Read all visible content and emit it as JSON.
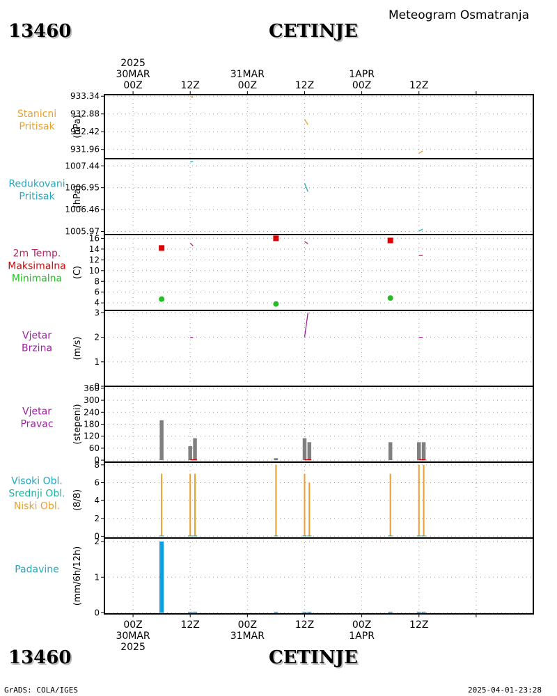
{
  "header": {
    "station_id": "13460",
    "station_name": "CETINJE",
    "subtitle": "Meteogram Osmatranja"
  },
  "footer": {
    "station_id": "13460",
    "station_name": "CETINJE",
    "credit": "GrADS: COLA/IGES",
    "timestamp": "2025-04-01-23:28"
  },
  "chart_data": {
    "type": "meteogram",
    "time_axis": {
      "hours_range": [
        -6,
        84
      ],
      "top_labels": [
        {
          "hour": 0,
          "lines": [
            "2025",
            "30MAR",
            "00Z"
          ]
        },
        {
          "hour": 12,
          "lines": [
            "12Z"
          ]
        },
        {
          "hour": 24,
          "lines": [
            "31MAR",
            "00Z"
          ]
        },
        {
          "hour": 36,
          "lines": [
            "12Z"
          ]
        },
        {
          "hour": 48,
          "lines": [
            "1APR",
            "00Z"
          ]
        },
        {
          "hour": 60,
          "lines": [
            "12Z"
          ]
        }
      ],
      "bottom_labels": [
        {
          "hour": 0,
          "lines": [
            "00Z",
            "30MAR",
            "2025"
          ]
        },
        {
          "hour": 12,
          "lines": [
            "12Z"
          ]
        },
        {
          "hour": 24,
          "lines": [
            "00Z",
            "31MAR"
          ]
        },
        {
          "hour": 36,
          "lines": [
            "12Z"
          ]
        },
        {
          "hour": 48,
          "lines": [
            "00Z",
            "1APR"
          ]
        },
        {
          "hour": 60,
          "lines": [
            "12Z"
          ]
        }
      ],
      "vgrid_hours": [
        0,
        12,
        24,
        36,
        48,
        60,
        72
      ]
    },
    "panels": [
      {
        "id": "station-pressure",
        "labels": [
          {
            "text": "Stanicni",
            "color": "#e8a030"
          },
          {
            "text": "Pritisak",
            "color": "#e8a030"
          }
        ],
        "unit": "(hPa)",
        "ylim": [
          931.72,
          933.38
        ],
        "ticks": [
          {
            "v": 933.34,
            "t": "933.34"
          },
          {
            "v": 932.88,
            "t": "932.88"
          },
          {
            "v": 932.42,
            "t": "932.42"
          },
          {
            "v": 931.96,
            "t": "931.96"
          }
        ],
        "series": [
          {
            "type": "segments",
            "color": "#e8a030",
            "segments": [
              [
                [
                  12,
                  933.34
                ],
                [
                  12.6,
                  933.3
                ]
              ],
              [
                [
                  36,
                  932.74
                ],
                [
                  36.7,
                  932.6
                ]
              ],
              [
                [
                  60,
                  931.86
                ],
                [
                  60.8,
                  931.92
                ]
              ]
            ]
          }
        ]
      },
      {
        "id": "reduced-pressure",
        "labels": [
          {
            "text": "Redukovani",
            "color": "#20a8c0"
          },
          {
            "text": "Pritisak",
            "color": "#20a8c0"
          }
        ],
        "unit": "(hPa)",
        "ylim": [
          1005.9,
          1007.6
        ],
        "ticks": [
          {
            "v": 1007.44,
            "t": "1007.44"
          },
          {
            "v": 1006.95,
            "t": "1006.95"
          },
          {
            "v": 1006.46,
            "t": "1006.46"
          },
          {
            "v": 1005.97,
            "t": "1005.97"
          }
        ],
        "series": [
          {
            "type": "segments",
            "color": "#20a8c0",
            "segments": [
              [
                [
                  12,
                  1007.53
                ],
                [
                  12.6,
                  1007.53
                ]
              ],
              [
                [
                  36,
                  1007.05
                ],
                [
                  36.7,
                  1006.86
                ]
              ],
              [
                [
                  60,
                  1005.98
                ],
                [
                  60.8,
                  1006.02
                ]
              ]
            ]
          }
        ]
      },
      {
        "id": "temperature",
        "labels": [
          {
            "text": "2m Temp.",
            "color": "#c02060"
          },
          {
            "text": "Maksimalna",
            "color": "#e00000"
          },
          {
            "text": "Minimalna",
            "color": "#20c020"
          }
        ],
        "unit": "(C)",
        "ylim": [
          2.6,
          16.7
        ],
        "ticks": [
          {
            "v": 16,
            "t": "16"
          },
          {
            "v": 14,
            "t": "14"
          },
          {
            "v": 12,
            "t": "12"
          },
          {
            "v": 10,
            "t": "10"
          },
          {
            "v": 8,
            "t": "8"
          },
          {
            "v": 6,
            "t": "6"
          },
          {
            "v": 4,
            "t": "4"
          }
        ],
        "series": [
          {
            "type": "segments",
            "color": "#c02060",
            "segments": [
              [
                [
                  12,
                  15.1
                ],
                [
                  12.6,
                  14.6
                ]
              ],
              [
                [
                  36,
                  15.4
                ],
                [
                  36.7,
                  15.0
                ]
              ],
              [
                [
                  60,
                  12.8
                ],
                [
                  60.8,
                  12.8
                ]
              ]
            ]
          },
          {
            "type": "squares",
            "color": "#e00000",
            "points": [
              [
                6,
                14.2
              ],
              [
                30,
                16.0
              ],
              [
                54,
                15.6
              ]
            ]
          },
          {
            "type": "dots",
            "color": "#20c020",
            "points": [
              [
                6,
                4.7
              ],
              [
                30,
                3.8
              ],
              [
                54,
                4.9
              ]
            ]
          }
        ]
      },
      {
        "id": "wind-speed",
        "labels": [
          {
            "text": "Vjetar",
            "color": "#a020a0"
          },
          {
            "text": "Brzina",
            "color": "#a020a0"
          }
        ],
        "unit": "(m/s)",
        "ylim": [
          0,
          3.1
        ],
        "ticks": [
          {
            "v": 3,
            "t": "3"
          },
          {
            "v": 2,
            "t": "2"
          },
          {
            "v": 1,
            "t": "1"
          },
          {
            "v": 0,
            "t": "0"
          }
        ],
        "series": [
          {
            "type": "segments",
            "color": "#a020a0",
            "segments": [
              [
                [
                  12,
                  2.0
                ],
                [
                  12.6,
                  2.0
                ]
              ],
              [
                [
                  36,
                  2.0
                ],
                [
                  36.7,
                  3.0
                ]
              ],
              [
                [
                  60,
                  2.0
                ],
                [
                  60.8,
                  2.0
                ]
              ]
            ]
          }
        ]
      },
      {
        "id": "wind-direction",
        "labels": [
          {
            "text": "Vjetar",
            "color": "#a020a0"
          },
          {
            "text": "Pravac",
            "color": "#a020a0"
          }
        ],
        "unit": "(stepeni)",
        "ylim": [
          -10,
          370
        ],
        "ticks": [
          {
            "v": 360,
            "t": "360"
          },
          {
            "v": 300,
            "t": "300"
          },
          {
            "v": 240,
            "t": "240"
          },
          {
            "v": 180,
            "t": "180"
          },
          {
            "v": 120,
            "t": "120"
          },
          {
            "v": 60,
            "t": "60"
          },
          {
            "v": 0,
            "t": "0"
          }
        ],
        "series": [
          {
            "type": "bars",
            "color": "#808080",
            "width": 0.8,
            "points": [
              [
                6,
                200
              ],
              [
                12,
                70
              ],
              [
                13,
                110
              ],
              [
                30,
                10
              ],
              [
                36,
                110
              ],
              [
                37,
                90
              ],
              [
                54,
                90
              ],
              [
                60,
                90
              ],
              [
                61,
                90
              ]
            ]
          },
          {
            "type": "segments",
            "color": "#e00000",
            "segments": [
              [
                [
                  12,
                  2
                ],
                [
                  13.4,
                  2
                ]
              ],
              [
                [
                  36,
                  2
                ],
                [
                  37.4,
                  2
                ]
              ],
              [
                [
                  60,
                  2
                ],
                [
                  61.4,
                  2
                ]
              ]
            ]
          }
        ]
      },
      {
        "id": "clouds",
        "labels": [
          {
            "text": "Visoki Obl.",
            "color": "#20a8c0"
          },
          {
            "text": "Srednji Obl.",
            "color": "#20b0a0"
          },
          {
            "text": "Niski Obl.",
            "color": "#e8a030"
          }
        ],
        "unit": "(8/8)",
        "ylim": [
          -0.2,
          8.3
        ],
        "ticks": [
          {
            "v": 8,
            "t": "8"
          },
          {
            "v": 6,
            "t": "6"
          },
          {
            "v": 4,
            "t": "4"
          },
          {
            "v": 2,
            "t": "2"
          },
          {
            "v": 0,
            "t": "0"
          }
        ],
        "series": [
          {
            "type": "bars",
            "color": "#e8a030",
            "width": 0.3,
            "points": [
              [
                6,
                7
              ],
              [
                12,
                7
              ],
              [
                13,
                7
              ],
              [
                30,
                8
              ],
              [
                36,
                7
              ],
              [
                37,
                6
              ],
              [
                54,
                7
              ],
              [
                60,
                8
              ],
              [
                61,
                8
              ]
            ]
          },
          {
            "type": "bars",
            "color": "#20b0a0",
            "width": 0.9,
            "points": [
              [
                6,
                0.08
              ],
              [
                12,
                0.08
              ],
              [
                13,
                0.08
              ],
              [
                30,
                0.08
              ],
              [
                36,
                0.08
              ],
              [
                37,
                0.08
              ],
              [
                54,
                0.08
              ],
              [
                60,
                0.08
              ],
              [
                61,
                0.08
              ]
            ]
          }
        ]
      },
      {
        "id": "precipitation",
        "labels": [
          {
            "text": "Padavine",
            "color": "#20a8c0"
          }
        ],
        "unit": "(mm/6h/12h)",
        "ylim": [
          -0.03,
          2.1
        ],
        "ticks": [
          {
            "v": 2,
            "t": "2"
          },
          {
            "v": 1,
            "t": "1"
          },
          {
            "v": 0,
            "t": "0"
          }
        ],
        "series": [
          {
            "type": "bars",
            "color": "#10a0e0",
            "width": 0.9,
            "points": [
              [
                6,
                2.0
              ],
              [
                12,
                0.03
              ],
              [
                13,
                0.03
              ],
              [
                30,
                0.03
              ],
              [
                36,
                0.03
              ],
              [
                37,
                0.03
              ],
              [
                54,
                0.03
              ],
              [
                60,
                0.03
              ],
              [
                61,
                0.03
              ]
            ]
          }
        ]
      }
    ]
  }
}
